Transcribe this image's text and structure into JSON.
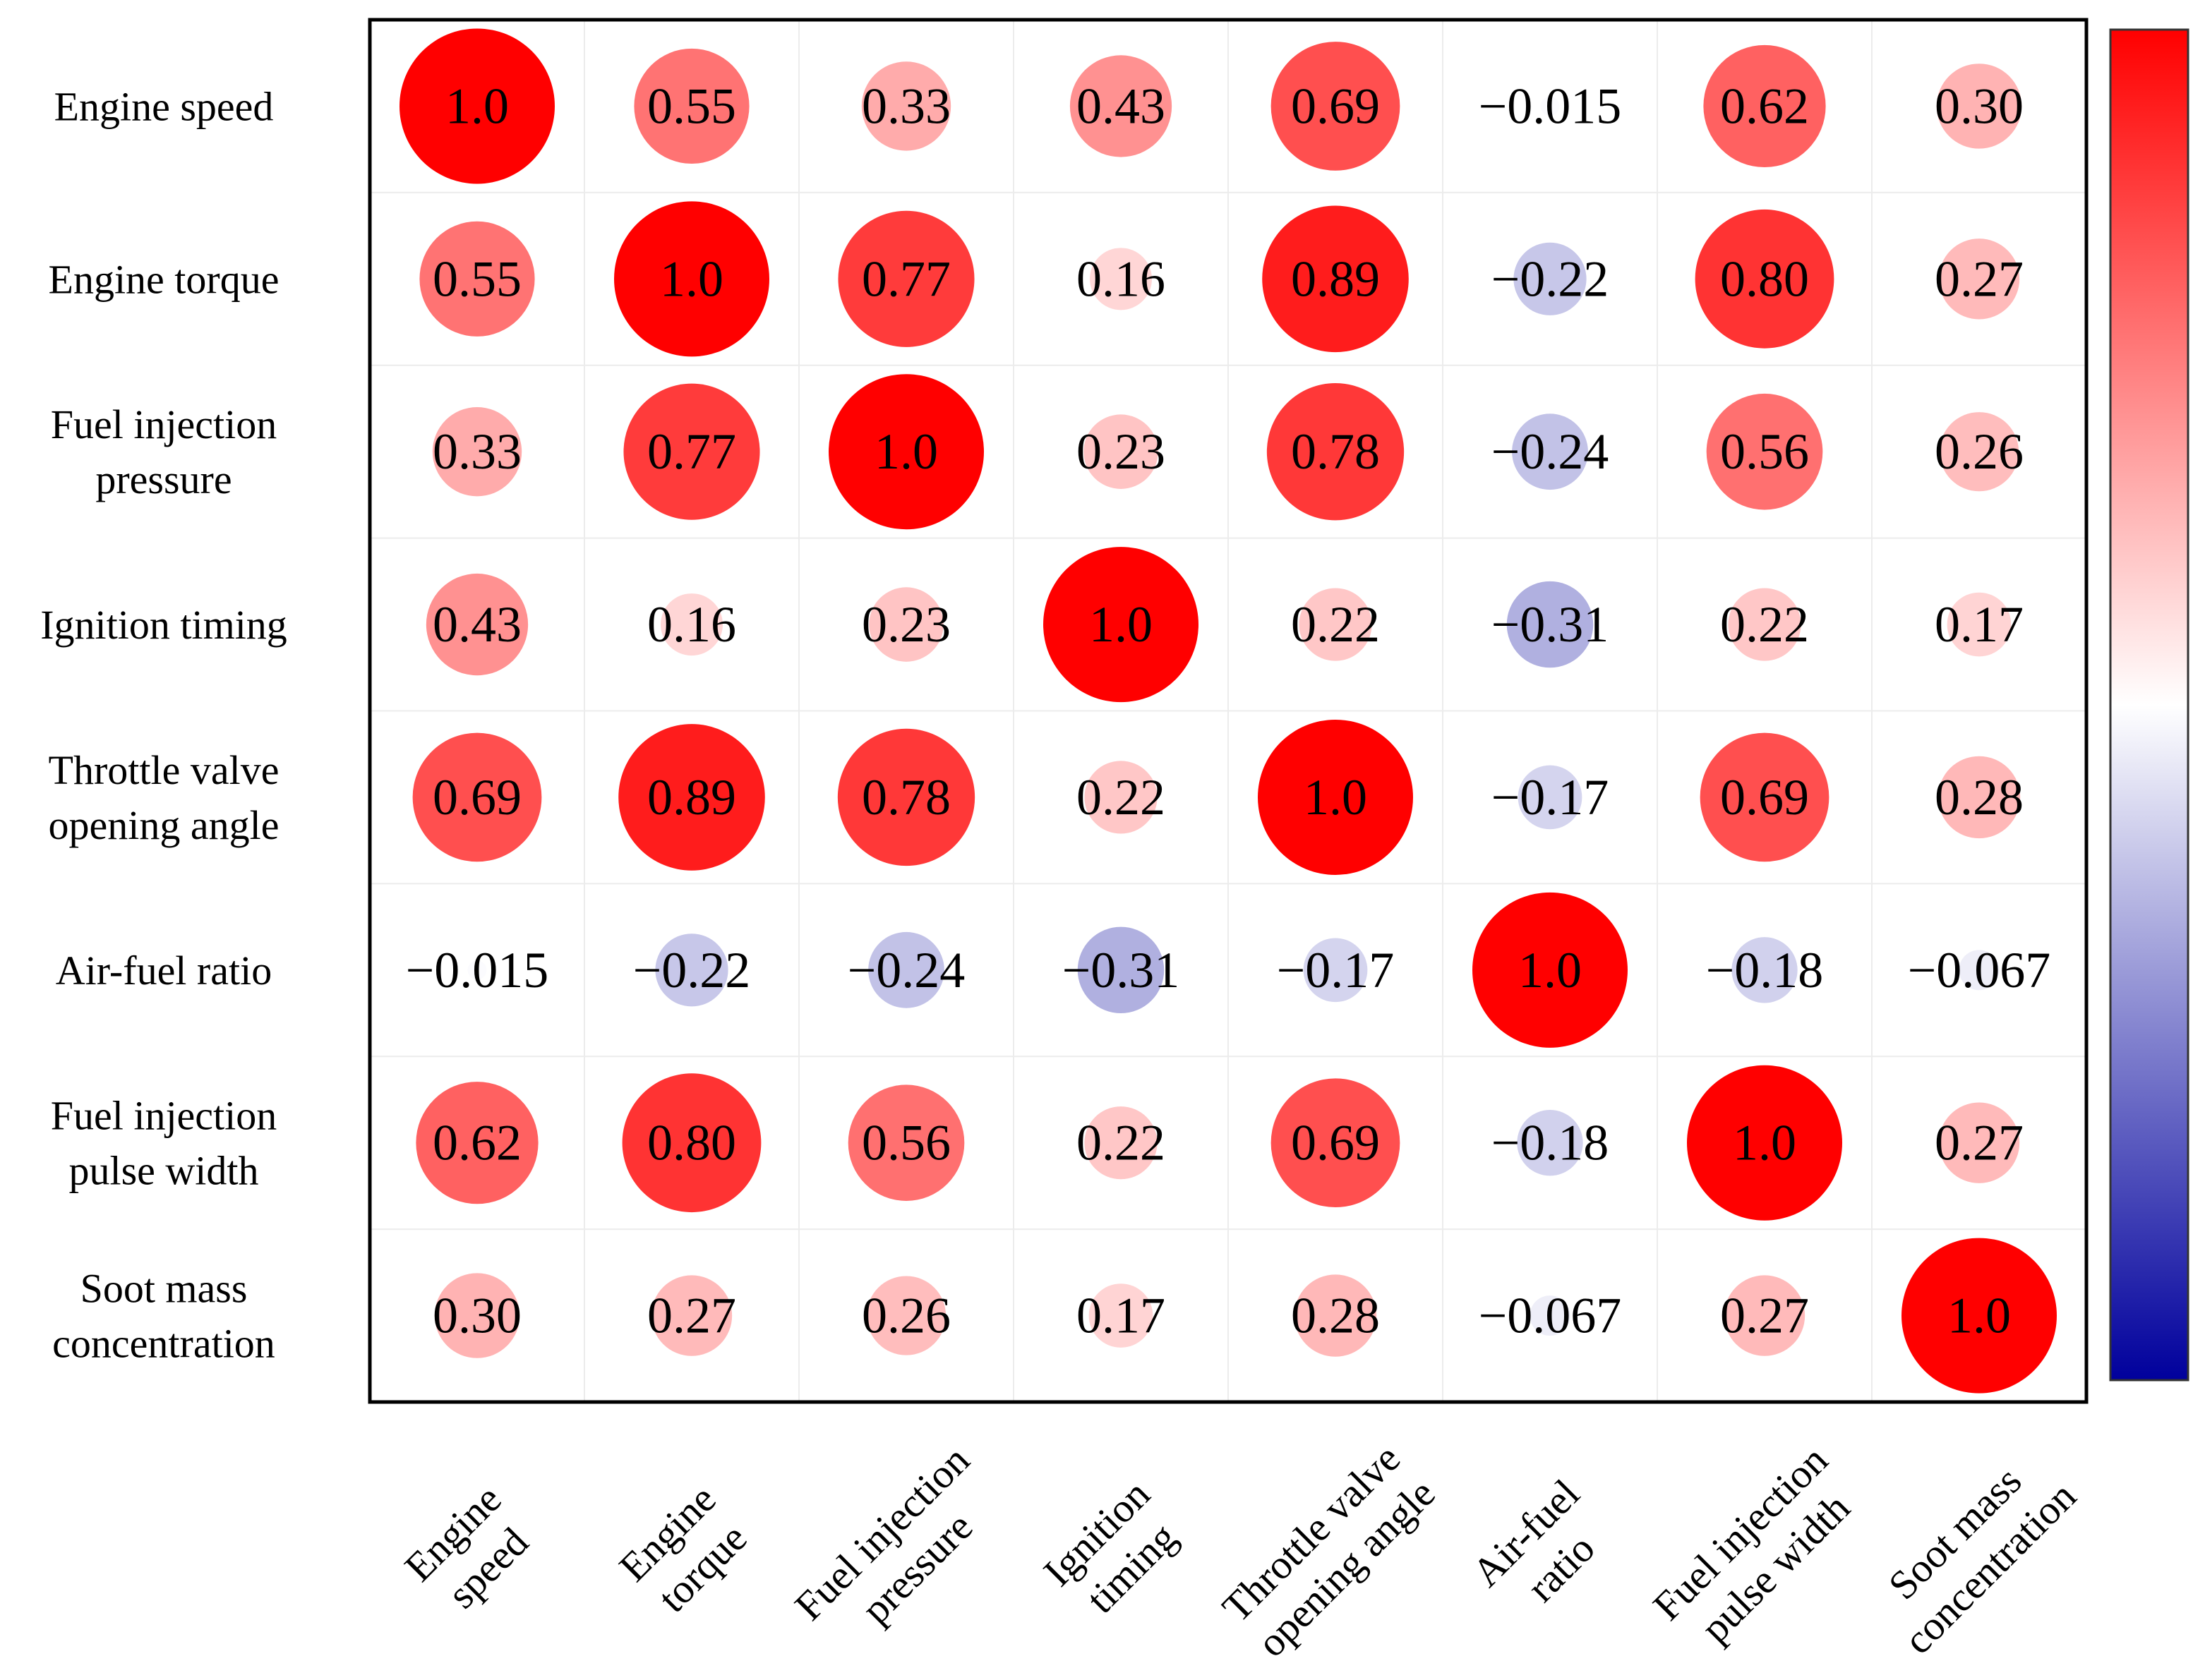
{
  "chart_data": {
    "type": "heatmap",
    "title": "",
    "style": "correlation matrix, circle size and color encode correlation coefficient",
    "variables": [
      {
        "row_label": [
          "Engine speed"
        ],
        "col_label": [
          "Engine",
          "speed"
        ]
      },
      {
        "row_label": [
          "Engine torque"
        ],
        "col_label": [
          "Engine",
          "torque"
        ]
      },
      {
        "row_label": [
          "Fuel injection",
          "pressure"
        ],
        "col_label": [
          "Fuel injection",
          "pressure"
        ]
      },
      {
        "row_label": [
          "Ignition timing"
        ],
        "col_label": [
          "Ignition",
          "timing"
        ]
      },
      {
        "row_label": [
          "Throttle valve",
          "opening angle"
        ],
        "col_label": [
          "Throttle valve",
          "opening angle"
        ]
      },
      {
        "row_label": [
          "Air-fuel ratio"
        ],
        "col_label": [
          "Air-fuel",
          "ratio"
        ]
      },
      {
        "row_label": [
          "Fuel injection",
          "pulse width"
        ],
        "col_label": [
          "Fuel injection",
          "pulse width"
        ]
      },
      {
        "row_label": [
          "Soot mass",
          "concentration"
        ],
        "col_label": [
          "Soot mass",
          "concentration"
        ]
      }
    ],
    "values": [
      [
        1.0,
        0.55,
        0.33,
        0.43,
        0.69,
        -0.015,
        0.62,
        0.3
      ],
      [
        0.55,
        1.0,
        0.77,
        0.16,
        0.89,
        -0.22,
        0.8,
        0.27
      ],
      [
        0.33,
        0.77,
        1.0,
        0.23,
        0.78,
        -0.24,
        0.56,
        0.26
      ],
      [
        0.43,
        0.16,
        0.23,
        1.0,
        0.22,
        -0.31,
        0.22,
        0.17
      ],
      [
        0.69,
        0.89,
        0.78,
        0.22,
        1.0,
        -0.17,
        0.69,
        0.28
      ],
      [
        -0.015,
        -0.22,
        -0.24,
        -0.31,
        -0.17,
        1.0,
        -0.18,
        -0.067
      ],
      [
        0.62,
        0.8,
        0.56,
        0.22,
        0.69,
        -0.18,
        1.0,
        0.27
      ],
      [
        0.3,
        0.27,
        0.26,
        0.17,
        0.28,
        -0.067,
        0.27,
        1.0
      ]
    ],
    "value_labels": [
      [
        "1.0",
        "0.55",
        "0.33",
        "0.43",
        "0.69",
        "−0.015",
        "0.62",
        "0.30"
      ],
      [
        "0.55",
        "1.0",
        "0.77",
        "0.16",
        "0.89",
        "−0.22",
        "0.80",
        "0.27"
      ],
      [
        "0.33",
        "0.77",
        "1.0",
        "0.23",
        "0.78",
        "−0.24",
        "0.56",
        "0.26"
      ],
      [
        "0.43",
        "0.16",
        "0.23",
        "1.0",
        "0.22",
        "−0.31",
        "0.22",
        "0.17"
      ],
      [
        "0.69",
        "0.89",
        "0.78",
        "0.22",
        "1.0",
        "−0.17",
        "0.69",
        "0.28"
      ],
      [
        "−0.015",
        "−0.22",
        "−0.24",
        "−0.31",
        "−0.17",
        "1.0",
        "−0.18",
        "−0.067"
      ],
      [
        "0.62",
        "0.80",
        "0.56",
        "0.22",
        "0.69",
        "−0.18",
        "1.0",
        "0.27"
      ],
      [
        "0.30",
        "0.27",
        "0.26",
        "0.17",
        "0.28",
        "−0.067",
        "0.27",
        "1.0"
      ]
    ],
    "color_range": [
      -1,
      1
    ],
    "colormap": {
      "negative": "#00009c",
      "zero": "#ffffff",
      "positive": "#ff0000"
    },
    "colorbar": "right, vertical, no tick labels",
    "grid": true
  }
}
